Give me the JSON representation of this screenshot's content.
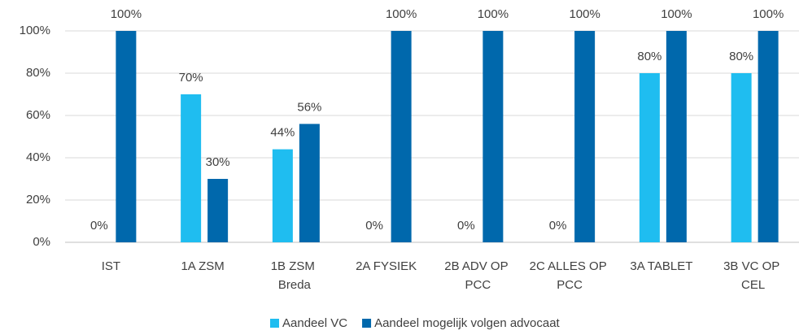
{
  "chart_data": {
    "type": "bar",
    "categories": [
      "IST",
      "1A ZSM",
      "1B ZSM Breda",
      "2A FYSIEK",
      "2B ADV OP PCC",
      "2C ALLES OP PCC",
      "3A TABLET",
      "3B VC OP CEL"
    ],
    "series": [
      {
        "name": "Aandeel VC",
        "color": "#1FBDF0",
        "values": [
          0,
          70,
          44,
          0,
          0,
          0,
          80,
          80
        ],
        "value_labels": [
          "0%",
          "70%",
          "44%",
          "0%",
          "0%",
          "0%",
          "80%",
          "80%"
        ]
      },
      {
        "name": "Aandeel mogelijk volgen advocaat",
        "color": "#0068AC",
        "values": [
          100,
          30,
          56,
          100,
          100,
          100,
          100,
          100
        ],
        "value_labels": [
          "100%",
          "30%",
          "56%",
          "100%",
          "100%",
          "100%",
          "100%",
          "100%"
        ]
      }
    ],
    "ylim": [
      0,
      100
    ],
    "yticks": [
      {
        "value": 0,
        "label": "0%"
      },
      {
        "value": 20,
        "label": "20%"
      },
      {
        "value": 40,
        "label": "40%"
      },
      {
        "value": 60,
        "label": "60%"
      },
      {
        "value": 80,
        "label": "80%"
      },
      {
        "value": 100,
        "label": "100%"
      }
    ],
    "grid": true,
    "legend": "bottom"
  }
}
